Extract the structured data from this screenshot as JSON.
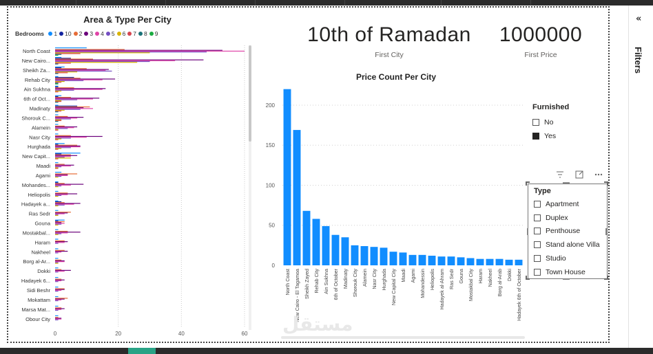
{
  "filters_pane": {
    "label": "Filters",
    "collapse_icon": "double-chevron-left-icon",
    "collapse_glyph": "«"
  },
  "card_city": {
    "value": "10th of Ramadan",
    "label": "First City"
  },
  "card_price": {
    "value": "1000000",
    "label": "First Price"
  },
  "furnished_slicer": {
    "title": "Furnished",
    "options": [
      {
        "label": "No",
        "checked": false
      },
      {
        "label": "Yes",
        "checked": true
      }
    ]
  },
  "type_slicer": {
    "title": "Type",
    "options": [
      {
        "label": "Apartment"
      },
      {
        "label": "Duplex"
      },
      {
        "label": "Penthouse"
      },
      {
        "label": "Stand alone Villa"
      },
      {
        "label": "Studio"
      },
      {
        "label": "Town House"
      }
    ]
  },
  "visual_header": {
    "filter_icon": "filter-icon",
    "focus_icon": "focus-mode-icon",
    "more_icon": "more-options-icon"
  },
  "watermark": "مستقل",
  "colors": {
    "bar_blue": "#118dff"
  },
  "chart_data": [
    {
      "type": "bar",
      "orientation": "horizontal",
      "title": "Area & Type Per City",
      "legend_title": "Bedrooms",
      "legend": [
        {
          "name": "1",
          "color": "#118dff"
        },
        {
          "name": "10",
          "color": "#12239e"
        },
        {
          "name": "2",
          "color": "#e66c37"
        },
        {
          "name": "3",
          "color": "#6b007b"
        },
        {
          "name": "4",
          "color": "#e044a7"
        },
        {
          "name": "5",
          "color": "#744ec2"
        },
        {
          "name": "6",
          "color": "#d9b300"
        },
        {
          "name": "7",
          "color": "#d64550"
        },
        {
          "name": "8",
          "color": "#197278"
        },
        {
          "name": "9",
          "color": "#1aab40"
        }
      ],
      "xlim": [
        0,
        60
      ],
      "xticks": [
        0,
        20,
        40,
        60
      ],
      "categories": [
        "North Coast",
        "New Cairo...",
        "Sheikh Za...",
        "Rehab City",
        "Ain Sukhna",
        "6th of Oct...",
        "Madinaty",
        "Shorouk C...",
        "Alamein",
        "Nasr City",
        "Hurghada",
        "New Capit...",
        "Maadi",
        "Agami",
        "Mohandes...",
        "Heliopolis",
        "Hadayek a...",
        "Ras Sedr",
        "Gouna",
        "Mostakbal...",
        "Haram",
        "Nakheel",
        "Borg al-Ar...",
        "Dokki",
        "Hadayek 6...",
        "Sidi Beshr",
        "Mokattam",
        "Marsa Mat...",
        "Obour City"
      ],
      "series_values": [
        [
          10,
          0,
          22,
          53,
          60,
          48,
          30,
          8,
          2,
          1
        ],
        [
          2,
          5,
          12,
          47,
          38,
          30,
          26,
          5,
          1,
          0
        ],
        [
          3,
          2,
          10,
          17,
          16,
          18,
          7,
          4,
          1,
          0
        ],
        [
          1,
          6,
          8,
          19,
          15,
          9,
          3,
          2,
          1,
          1
        ],
        [
          1,
          1,
          6,
          16,
          15,
          6,
          2,
          1,
          0,
          0
        ],
        [
          2,
          1,
          5,
          14,
          12,
          7,
          2,
          2,
          1,
          0
        ],
        [
          1,
          7,
          11,
          9,
          12,
          8,
          3,
          2,
          1,
          0
        ],
        [
          1,
          0,
          4,
          9,
          7,
          5,
          2,
          2,
          1,
          0
        ],
        [
          1,
          0,
          3,
          7,
          6,
          4,
          1,
          1,
          0,
          0
        ],
        [
          1,
          0,
          5,
          15,
          10,
          5,
          2,
          1,
          0,
          0
        ],
        [
          3,
          1,
          7,
          8,
          8,
          5,
          2,
          1,
          0,
          0
        ],
        [
          8,
          2,
          5,
          7,
          5,
          3,
          5,
          1,
          0,
          0
        ],
        [
          1,
          0,
          3,
          6,
          5,
          2,
          1,
          1,
          0,
          0
        ],
        [
          2,
          0,
          7,
          4,
          4,
          2,
          1,
          0,
          0,
          0
        ],
        [
          1,
          1,
          3,
          9,
          5,
          2,
          1,
          0,
          0,
          0
        ],
        [
          1,
          0,
          4,
          7,
          4,
          2,
          1,
          0,
          0,
          0
        ],
        [
          1,
          2,
          3,
          8,
          6,
          3,
          1,
          0,
          0,
          0
        ],
        [
          1,
          0,
          5,
          4,
          3,
          1,
          1,
          0,
          0,
          0
        ],
        [
          3,
          1,
          3,
          2,
          3,
          2,
          1,
          0,
          0,
          0
        ],
        [
          1,
          0,
          4,
          8,
          4,
          2,
          1,
          0,
          0,
          0
        ],
        [
          1,
          0,
          3,
          4,
          3,
          1,
          0,
          0,
          0,
          0
        ],
        [
          1,
          0,
          3,
          4,
          2,
          1,
          0,
          0,
          0,
          0
        ],
        [
          1,
          0,
          2,
          3,
          3,
          1,
          1,
          0,
          0,
          0
        ],
        [
          1,
          0,
          2,
          5,
          3,
          1,
          0,
          0,
          0,
          0
        ],
        [
          1,
          0,
          2,
          3,
          2,
          1,
          0,
          0,
          0,
          0
        ],
        [
          1,
          0,
          3,
          3,
          2,
          1,
          0,
          0,
          0,
          0
        ],
        [
          1,
          0,
          4,
          3,
          2,
          1,
          0,
          0,
          0,
          0
        ],
        [
          1,
          0,
          2,
          3,
          2,
          1,
          0,
          0,
          0,
          0
        ],
        [
          1,
          0,
          1,
          2,
          2,
          1,
          0,
          0,
          0,
          0
        ]
      ]
    },
    {
      "type": "bar",
      "title": "Price Count Per City",
      "ylim": [
        0,
        230
      ],
      "yticks": [
        0,
        50,
        100,
        150,
        200
      ],
      "categories": [
        "North Coast",
        "New Cairo - El Tagamoa",
        "Sheikh Zayed",
        "Rehab City",
        "Ain Sukhna",
        "6th of October",
        "Madinaty",
        "Shorouk City",
        "Alamein",
        "Nasr City",
        "Hurghada",
        "New Capital City",
        "Maadi",
        "Agami",
        "Mohandessin",
        "Heliopolis",
        "Hadayek al-Ahram",
        "Ras Sedr",
        "Gouna",
        "Mostakbal City",
        "Haram",
        "Nakheel",
        "Borg al-Arab",
        "Dokki",
        "Hadayek 6th of October"
      ],
      "values": [
        220,
        169,
        68,
        58,
        49,
        38,
        35,
        25,
        24,
        23,
        22,
        17,
        16,
        13,
        13,
        12,
        11,
        11,
        10,
        9,
        8,
        8,
        8,
        7,
        7
      ],
      "grid": true
    }
  ]
}
